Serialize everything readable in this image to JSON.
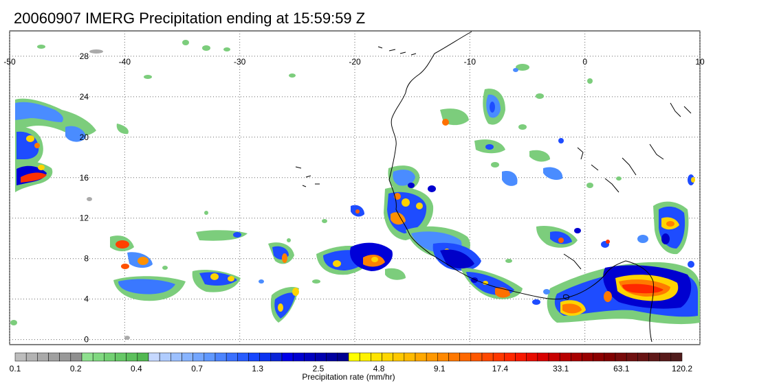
{
  "title": "20060907 IMERG Precipitation ending at 15:59:59 Z",
  "map": {
    "lon_range": [
      -50,
      10
    ],
    "lat_range": [
      -0.5,
      30.5
    ],
    "lon_ticks": [
      "-50",
      "-40",
      "-30",
      "-20",
      "-10",
      "0",
      "10"
    ],
    "lat_ticks": [
      "0",
      "4",
      "8",
      "12",
      "16",
      "20",
      "24",
      "28"
    ],
    "gridlines": "dotted",
    "coastline_color": "#000000"
  },
  "colorbar": {
    "label": "Precipitation rate (mm/hr)",
    "tick_labels": [
      "0.1",
      "0.2",
      "0.4",
      "0.7",
      "1.3",
      "2.5",
      "4.8",
      "9.1",
      "17.4",
      "33.1",
      "63.1",
      "120.2"
    ],
    "colors": [
      "#bdbdbd",
      "#b3b3b3",
      "#aaaaaa",
      "#a0a0a0",
      "#999999",
      "#8f8f8f",
      "#8fe08f",
      "#80d880",
      "#72d072",
      "#66c866",
      "#5cc05c",
      "#52b852",
      "#c6d8ff",
      "#b0ccff",
      "#9cc0ff",
      "#88b4ff",
      "#74a6ff",
      "#6098ff",
      "#4c84ff",
      "#3a70ff",
      "#285cff",
      "#1646ff",
      "#0a32f0",
      "#0a24d8",
      "#0000e8",
      "#0000d0",
      "#0000c0",
      "#0000b0",
      "#0000a0",
      "#000090",
      "#ffff00",
      "#fff200",
      "#ffe400",
      "#ffd600",
      "#ffc800",
      "#ffba00",
      "#ffa800",
      "#ff9800",
      "#ff8800",
      "#ff7800",
      "#ff6800",
      "#ff5800",
      "#ff4800",
      "#ff3800",
      "#ff2800",
      "#f81800",
      "#e80c00",
      "#d80000",
      "#c80000",
      "#b80000",
      "#a80000",
      "#980000",
      "#8c0000",
      "#800000",
      "#780a0a",
      "#701010",
      "#681414",
      "#601818",
      "#581a1a",
      "#501c1c"
    ]
  }
}
